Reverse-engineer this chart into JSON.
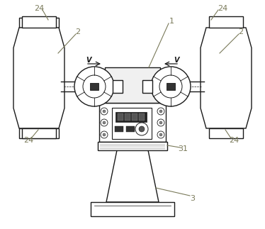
{
  "figure_width": 3.74,
  "figure_height": 3.23,
  "dpi": 100,
  "background_color": "#ffffff",
  "line_color": "#1a1a1a",
  "label_color": "#7a7a5a",
  "line_width": 1.0,
  "thin_line": 0.6
}
